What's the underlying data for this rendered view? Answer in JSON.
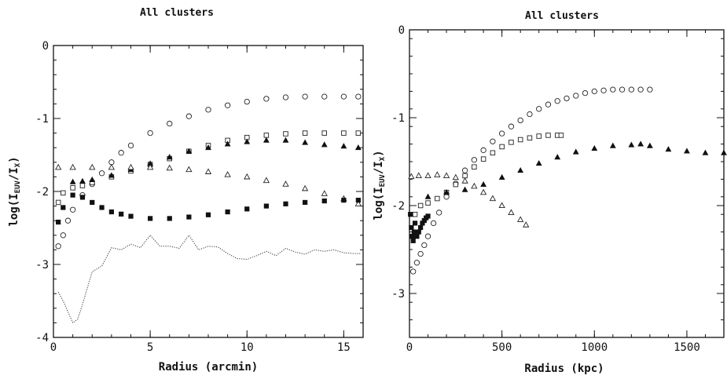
{
  "chart_data": [
    {
      "type": "scatter",
      "title": "All clusters",
      "xlabel": "Radius (arcmin)",
      "ylabel_parts": {
        "main": "log(I",
        "sub1": "EUV",
        "mid": "/I",
        "sub2": "X",
        "end": ")"
      },
      "xlim": [
        0,
        16
      ],
      "ylim": [
        -4,
        0
      ],
      "x_ticks": [
        0,
        5,
        10,
        15
      ],
      "y_ticks": [
        0,
        -1,
        -2,
        -3,
        -4
      ],
      "series": [
        {
          "marker": "open-circle",
          "x": [
            0.25,
            0.5,
            0.75,
            1,
            1.5,
            2,
            2.5,
            3,
            3.5,
            4,
            5,
            6,
            7,
            8,
            9,
            10,
            11,
            12,
            13,
            14,
            15,
            15.75
          ],
          "y": [
            -2.75,
            -2.6,
            -2.4,
            -2.25,
            -2.05,
            -1.9,
            -1.75,
            -1.6,
            -1.47,
            -1.37,
            -1.2,
            -1.07,
            -0.97,
            -0.88,
            -0.82,
            -0.77,
            -0.73,
            -0.71,
            -0.7,
            -0.7,
            -0.7,
            -0.7
          ]
        },
        {
          "marker": "open-square",
          "x": [
            0.25,
            0.5,
            1,
            1.5,
            2,
            3,
            4,
            5,
            6,
            7,
            8,
            9,
            10,
            11,
            12,
            13,
            14,
            15,
            15.75
          ],
          "y": [
            -2.15,
            -2.02,
            -1.95,
            -1.92,
            -1.88,
            -1.8,
            -1.72,
            -1.63,
            -1.55,
            -1.45,
            -1.37,
            -1.3,
            -1.26,
            -1.23,
            -1.21,
            -1.2,
            -1.2,
            -1.2,
            -1.2
          ]
        },
        {
          "marker": "filled-triangle",
          "x": [
            1,
            1.5,
            2,
            3,
            4,
            5,
            6,
            7,
            8,
            9,
            10,
            11,
            12,
            13,
            14,
            15,
            15.75
          ],
          "y": [
            -1.87,
            -1.86,
            -1.84,
            -1.78,
            -1.7,
            -1.62,
            -1.53,
            -1.45,
            -1.4,
            -1.35,
            -1.32,
            -1.3,
            -1.3,
            -1.33,
            -1.36,
            -1.38,
            -1.4
          ]
        },
        {
          "marker": "open-triangle",
          "x": [
            0.25,
            1,
            2,
            3,
            4,
            5,
            6,
            7,
            8,
            9,
            10,
            11,
            12,
            13,
            14,
            15,
            15.75
          ],
          "y": [
            -1.67,
            -1.67,
            -1.67,
            -1.67,
            -1.67,
            -1.67,
            -1.68,
            -1.7,
            -1.73,
            -1.77,
            -1.8,
            -1.85,
            -1.9,
            -1.96,
            -2.03,
            -2.1,
            -2.17
          ]
        },
        {
          "marker": "filled-square",
          "x": [
            0.25,
            0.5,
            1,
            1.5,
            2,
            2.5,
            3,
            3.5,
            4,
            5,
            6,
            7,
            8,
            9,
            10,
            11,
            12,
            13,
            14,
            15,
            15.75
          ],
          "y": [
            -2.42,
            -2.22,
            -2.05,
            -2.08,
            -2.15,
            -2.22,
            -2.28,
            -2.31,
            -2.34,
            -2.37,
            -2.37,
            -2.35,
            -2.32,
            -2.28,
            -2.24,
            -2.2,
            -2.17,
            -2.15,
            -2.13,
            -2.12,
            -2.12
          ]
        },
        {
          "marker": "dotted-line",
          "x": [
            0.25,
            0.5,
            0.75,
            1,
            1.25,
            1.5,
            2,
            2.5,
            3,
            3.5,
            4,
            4.5,
            5,
            5.5,
            6,
            6.5,
            7,
            7.5,
            8,
            8.5,
            9,
            9.5,
            10,
            10.5,
            11,
            11.5,
            12,
            12.5,
            13,
            13.5,
            14,
            14.5,
            15,
            15.5,
            15.9
          ],
          "y": [
            -3.38,
            -3.5,
            -3.65,
            -3.8,
            -3.75,
            -3.55,
            -3.1,
            -3.02,
            -2.77,
            -2.8,
            -2.72,
            -2.77,
            -2.6,
            -2.75,
            -2.75,
            -2.78,
            -2.6,
            -2.8,
            -2.75,
            -2.76,
            -2.85,
            -2.92,
            -2.93,
            -2.88,
            -2.82,
            -2.88,
            -2.78,
            -2.83,
            -2.86,
            -2.8,
            -2.82,
            -2.8,
            -2.84,
            -2.85,
            -2.85
          ]
        }
      ]
    },
    {
      "type": "scatter",
      "title": "All clusters",
      "xlabel": "Radius (kpc)",
      "ylabel_parts": {
        "main": "log(I",
        "sub1": "EUV",
        "mid": "/I",
        "sub2": "X",
        "end": ")"
      },
      "xlim": [
        0,
        1700
      ],
      "ylim": [
        -3.5,
        0
      ],
      "x_ticks": [
        0,
        500,
        1000,
        1500
      ],
      "y_ticks": [
        0,
        -1,
        -2,
        -3
      ],
      "series": [
        {
          "marker": "open-circle",
          "x": [
            20,
            40,
            60,
            80,
            100,
            130,
            160,
            200,
            250,
            300,
            350,
            400,
            450,
            500,
            550,
            600,
            650,
            700,
            750,
            800,
            850,
            900,
            950,
            1000,
            1050,
            1100,
            1150,
            1200,
            1250,
            1300
          ],
          "y": [
            -2.75,
            -2.65,
            -2.55,
            -2.45,
            -2.35,
            -2.2,
            -2.08,
            -1.9,
            -1.75,
            -1.6,
            -1.48,
            -1.37,
            -1.27,
            -1.18,
            -1.1,
            -1.03,
            -0.96,
            -0.9,
            -0.85,
            -0.81,
            -0.78,
            -0.75,
            -0.72,
            -0.7,
            -0.69,
            -0.68,
            -0.68,
            -0.68,
            -0.68,
            -0.68
          ]
        },
        {
          "marker": "open-square",
          "x": [
            30,
            60,
            100,
            150,
            200,
            250,
            300,
            350,
            400,
            450,
            500,
            550,
            600,
            650,
            700,
            750,
            800,
            820
          ],
          "y": [
            -2.1,
            -2.0,
            -1.97,
            -1.92,
            -1.85,
            -1.76,
            -1.66,
            -1.56,
            -1.47,
            -1.4,
            -1.33,
            -1.28,
            -1.25,
            -1.23,
            -1.21,
            -1.2,
            -1.2,
            -1.2
          ]
        },
        {
          "marker": "filled-triangle",
          "x": [
            100,
            200,
            300,
            400,
            500,
            600,
            700,
            800,
            900,
            1000,
            1100,
            1200,
            1250,
            1300,
            1400,
            1500,
            1600,
            1700
          ],
          "y": [
            -1.9,
            -1.85,
            -1.82,
            -1.76,
            -1.68,
            -1.6,
            -1.52,
            -1.45,
            -1.39,
            -1.35,
            -1.32,
            -1.31,
            -1.3,
            -1.32,
            -1.36,
            -1.38,
            -1.4,
            -1.4
          ]
        },
        {
          "marker": "open-triangle",
          "x": [
            10,
            50,
            100,
            150,
            200,
            250,
            300,
            350,
            400,
            450,
            500,
            550,
            600,
            630
          ],
          "y": [
            -1.67,
            -1.66,
            -1.66,
            -1.65,
            -1.66,
            -1.68,
            -1.72,
            -1.78,
            -1.85,
            -1.92,
            -2.0,
            -2.08,
            -2.16,
            -2.22
          ]
        },
        {
          "marker": "filled-square",
          "x": [
            5,
            10,
            15,
            20,
            25,
            30,
            35,
            40,
            50,
            60,
            70,
            80,
            90,
            100
          ],
          "y": [
            -2.1,
            -2.25,
            -2.35,
            -2.4,
            -2.3,
            -2.2,
            -2.3,
            -2.35,
            -2.3,
            -2.25,
            -2.2,
            -2.17,
            -2.14,
            -2.12
          ]
        }
      ]
    }
  ]
}
